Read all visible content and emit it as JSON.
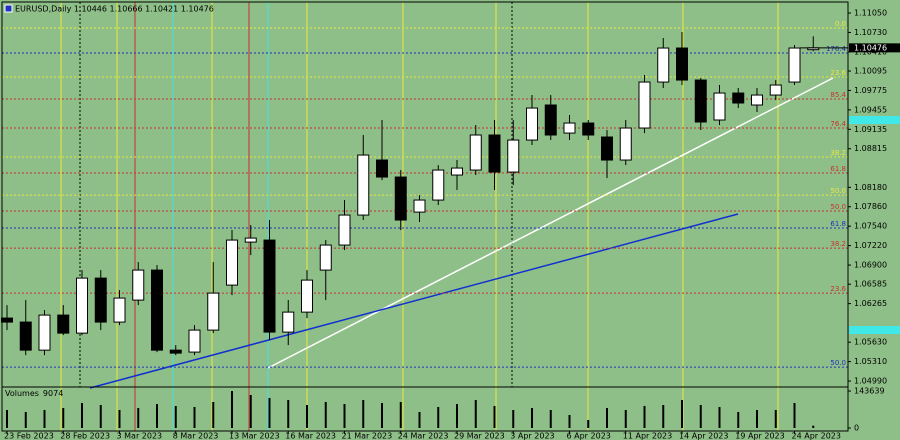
{
  "chart_data": {
    "type": "candlestick",
    "title": "EURUSD,Daily 1.10446 1.10666 1.10421 1.10476",
    "categories": [
      "23 Feb 2023",
      null,
      null,
      "28 Feb 2023",
      null,
      null,
      "3 Mar 2023",
      null,
      null,
      "8 Mar 2023",
      null,
      null,
      "13 Mar 2023",
      null,
      null,
      "16 Mar 2023",
      null,
      null,
      "21 Mar 2023",
      null,
      null,
      "24 Mar 2023",
      null,
      null,
      "29 Mar 2023",
      null,
      null,
      "3 Apr 2023",
      null,
      null,
      "6 Apr 2023",
      null,
      null,
      "11 Apr 2023",
      null,
      null,
      "14 Apr 2023",
      null,
      null,
      "19 Apr 2023",
      null,
      null,
      "24 Apr 2023",
      null
    ],
    "open": [
      1.06027,
      1.05961,
      1.05499,
      1.06076,
      1.05779,
      1.06685,
      1.05961,
      1.06323,
      1.06817,
      1.05499,
      1.05467,
      1.05829,
      1.0657,
      1.07278,
      1.07311,
      1.05796,
      1.06125,
      1.06817,
      1.07229,
      1.07723,
      1.08629,
      1.08349,
      1.07772,
      1.0797,
      1.08382,
      1.08464,
      1.09041,
      1.08431,
      1.08958,
      1.09535,
      1.09073,
      1.09238,
      1.09008,
      1.08629,
      1.09156,
      1.09913,
      1.10473,
      1.09946,
      1.09288,
      1.09732,
      1.09535,
      1.09699,
      1.09913,
      1.10446
    ],
    "high": [
      1.06241,
      1.06323,
      1.06158,
      1.06241,
      1.06817,
      1.06817,
      1.06488,
      1.06949,
      1.06899,
      1.05582,
      1.05911,
      1.06949,
      1.07476,
      1.07558,
      1.07641,
      1.06323,
      1.06817,
      1.07311,
      1.0797,
      1.09041,
      1.09288,
      1.08464,
      1.08052,
      1.08546,
      1.08629,
      1.09205,
      1.09288,
      1.09288,
      1.09699,
      1.09699,
      1.0937,
      1.09288,
      1.09123,
      1.09288,
      1.10029,
      1.10638,
      1.10737,
      1.09979,
      1.09864,
      1.09815,
      1.09815,
      1.09946,
      1.10523,
      1.10666
    ],
    "low": [
      1.05829,
      1.05417,
      1.05417,
      1.05747,
      1.05747,
      1.05829,
      1.05911,
      1.06241,
      1.05467,
      1.05417,
      1.05417,
      1.05779,
      1.06405,
      1.07064,
      1.05664,
      1.05582,
      1.06027,
      1.06323,
      1.07146,
      1.07641,
      1.08299,
      1.07476,
      1.07608,
      1.07888,
      1.08135,
      1.08382,
      1.08135,
      1.08217,
      1.08876,
      1.08958,
      1.08958,
      1.08958,
      1.08332,
      1.08546,
      1.09073,
      1.09815,
      1.09864,
      1.09123,
      1.09205,
      1.09485,
      1.09419,
      1.09617,
      1.09864,
      1.10421
    ],
    "close": [
      1.05961,
      1.05499,
      1.06076,
      1.05779,
      1.06685,
      1.05961,
      1.06356,
      1.06817,
      1.05499,
      1.0545,
      1.05829,
      1.06438,
      1.07311,
      1.07344,
      1.05796,
      1.06125,
      1.06652,
      1.07229,
      1.07723,
      1.08711,
      1.08349,
      1.07641,
      1.0797,
      1.08464,
      1.08497,
      1.09041,
      1.08431,
      1.08958,
      1.09485,
      1.09041,
      1.09238,
      1.09041,
      1.08629,
      1.09156,
      1.09913,
      1.10473,
      1.09946,
      1.09255,
      1.09732,
      1.09568,
      1.09699,
      1.09864,
      1.10473,
      1.10476
    ],
    "ylim": [
      1.04892,
      1.11231
    ],
    "yticks": [
      {
        "value": 1.1105,
        "label": "1.11050"
      },
      {
        "value": 1.1073,
        "label": "1.10730"
      },
      {
        "value": 1.1041,
        "label": "1.10410"
      },
      {
        "value": 1.10095,
        "label": "1.10095"
      },
      {
        "value": 1.09775,
        "label": "1.09775"
      },
      {
        "value": 1.09455,
        "label": "1.09455"
      },
      {
        "value": 1.09135,
        "label": "1.09135"
      },
      {
        "value": 1.08815,
        "label": "1.08815"
      },
      {
        "value": 1.0818,
        "label": "1.08180"
      },
      {
        "value": 1.0786,
        "label": "1.07860"
      },
      {
        "value": 1.0754,
        "label": "1.07540"
      },
      {
        "value": 1.0722,
        "label": "1.07220"
      },
      {
        "value": 1.069,
        "label": "1.06900"
      },
      {
        "value": 1.06585,
        "label": "1.06585"
      },
      {
        "value": 1.06265,
        "label": "1.06265"
      },
      {
        "value": 1.0563,
        "label": "1.05630"
      },
      {
        "value": 1.0531,
        "label": "1.05310"
      },
      {
        "value": 1.0499,
        "label": "1.04990"
      }
    ],
    "colors": {
      "up": "#ffffff",
      "down": "#000000",
      "background": "#8fbf88"
    },
    "fib_levels": [
      {
        "label": "0.0",
        "price": 1.10803,
        "color": "#e8e840"
      },
      {
        "label": "176.4",
        "price": 1.10391,
        "color": "#2030c0"
      },
      {
        "label": "23.6",
        "price": 1.09996,
        "color": "#e8e840"
      },
      {
        "label": "85.4",
        "price": 1.09633,
        "color": "#c83030"
      },
      {
        "label": "76.4",
        "price": 1.09156,
        "color": "#c83030"
      },
      {
        "label": "38.2",
        "price": 1.08678,
        "color": "#e8e840"
      },
      {
        "label": "61.8",
        "price": 1.08415,
        "color": "#c83030"
      },
      {
        "label": "50.0",
        "price": 1.08052,
        "color": "#e8e840"
      },
      {
        "label": "50.0",
        "price": 1.07789,
        "color": "#c83030"
      },
      {
        "label": "61.8",
        "price": 1.07509,
        "color": "#2030c0"
      },
      {
        "label": "38.2",
        "price": 1.07179,
        "color": "#c83030"
      },
      {
        "label": "23.6",
        "price": 1.06438,
        "color": "#c83030"
      },
      {
        "label": "50.0",
        "price": 1.05219,
        "color": "#2030c0"
      }
    ],
    "volume": {
      "name": "Volumes",
      "values": [
        69900,
        62100,
        69900,
        77600,
        97100,
        89300,
        69900,
        77600,
        93200,
        85400,
        81500,
        100900,
        143639,
        128100,
        116500,
        108700,
        89300,
        100900,
        93200,
        108700,
        97100,
        100900,
        62100,
        81500,
        93200,
        108700,
        85400,
        69900,
        77600,
        69900,
        50500,
        31100,
        77600,
        69900,
        85400,
        89300,
        108700,
        89300,
        81500,
        62100,
        69900,
        69900,
        97100,
        9074
      ],
      "ylim": [
        0,
        143639
      ],
      "yticks": [
        0,
        143639
      ]
    }
  }
}
